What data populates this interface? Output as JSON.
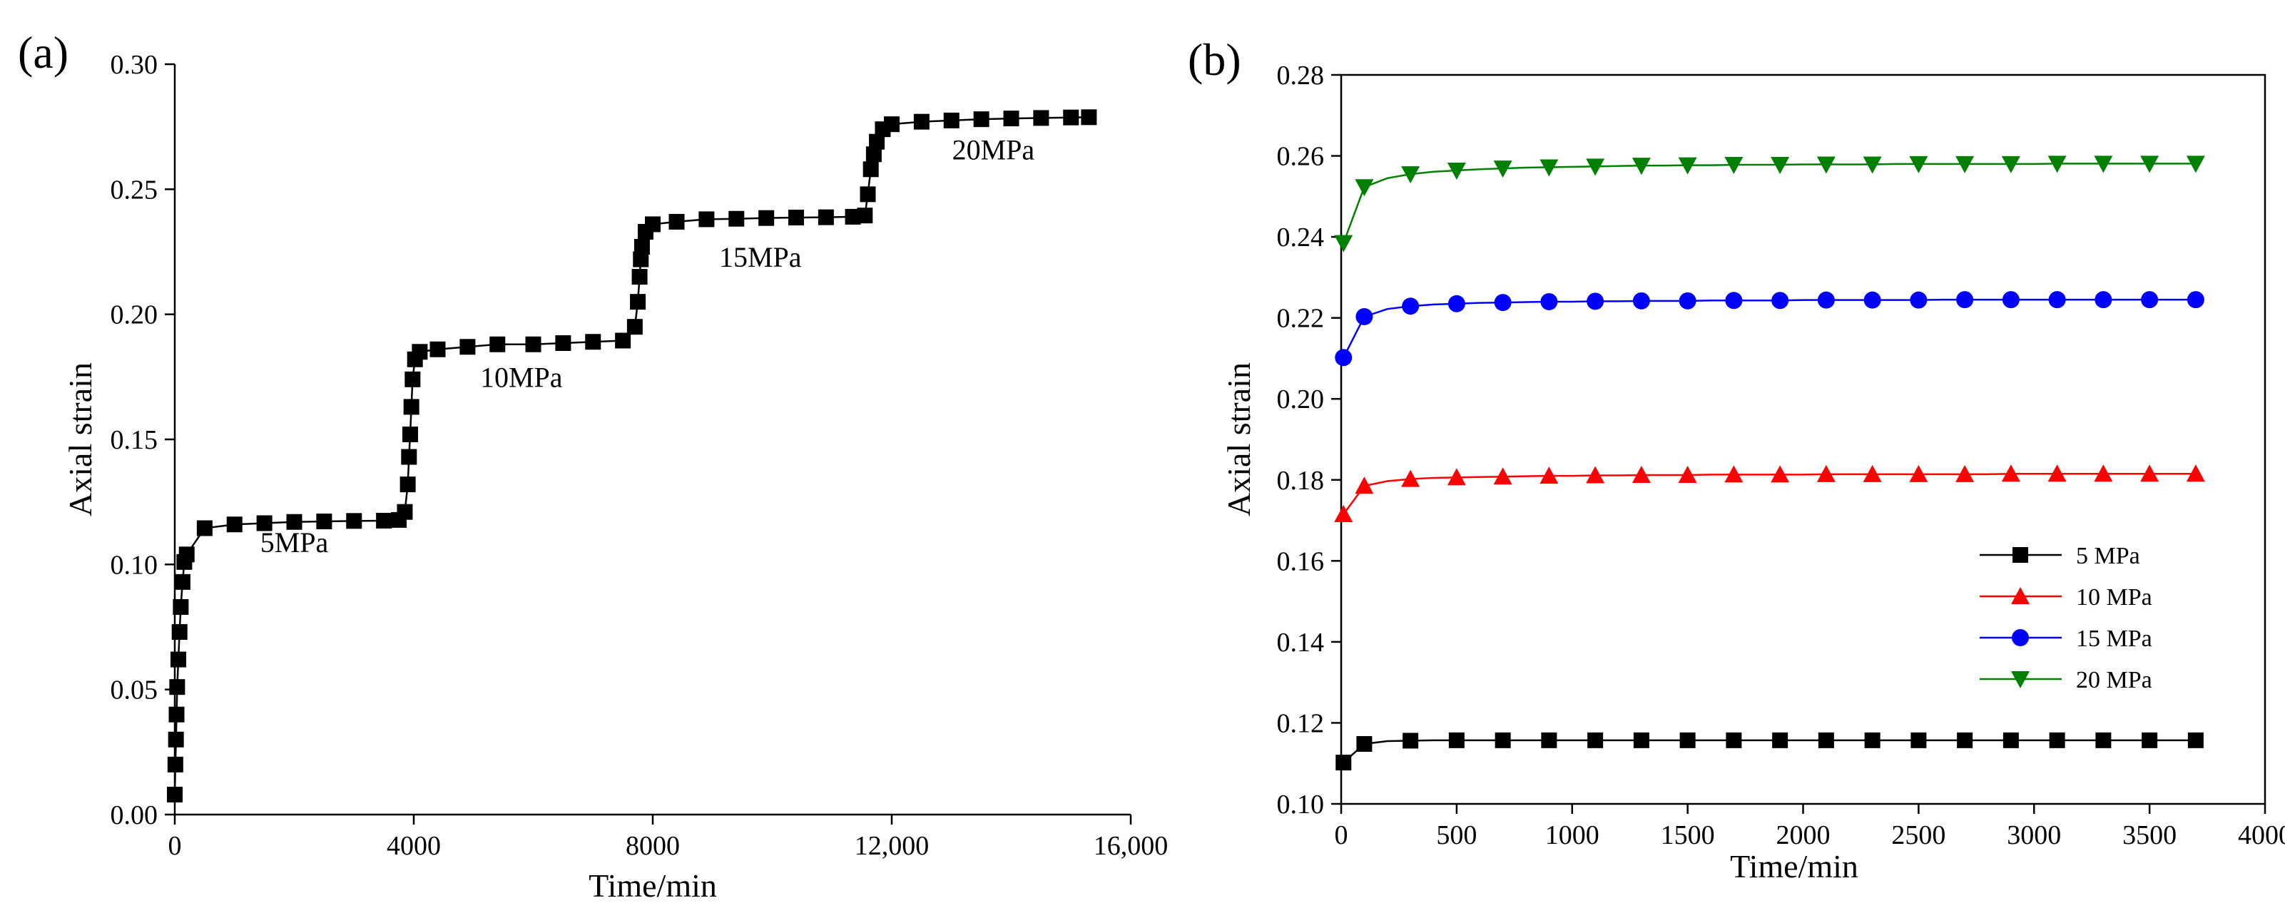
{
  "figure": {
    "panel_a_label": "(a)",
    "panel_b_label": "(b)"
  },
  "chart_data": [
    {
      "type": "line",
      "panel": "(a)",
      "title": "",
      "xlabel": "Time/min",
      "ylabel": "Axial strain",
      "xlim": [
        0,
        16000
      ],
      "ylim": [
        0,
        0.3
      ],
      "xticks": [
        0,
        4000,
        8000,
        12000,
        16000
      ],
      "xtick_labels": [
        "0",
        "4000",
        "8000",
        "12,000",
        "16,000"
      ],
      "yticks": [
        0,
        0.05,
        0.1,
        0.15,
        0.2,
        0.25,
        0.3
      ],
      "ytick_labels": [
        "0.00",
        "0.05",
        "0.10",
        "0.15",
        "0.20",
        "0.25",
        "0.30"
      ],
      "grid": false,
      "series": [
        {
          "name": "Axial strain",
          "color": "#000000",
          "marker": "square",
          "x": [
            0,
            10,
            20,
            30,
            40,
            60,
            80,
            100,
            130,
            160,
            200,
            500,
            1000,
            1500,
            2000,
            2500,
            3000,
            3500,
            3750,
            3850,
            3900,
            3920,
            3940,
            3960,
            3980,
            4020,
            4100,
            4400,
            4900,
            5400,
            6000,
            6500,
            7000,
            7500,
            7700,
            7750,
            7780,
            7800,
            7820,
            7880,
            8000,
            8400,
            8900,
            9400,
            9900,
            10400,
            10900,
            11350,
            11550,
            11600,
            11650,
            11700,
            11750,
            11850,
            12000,
            12500,
            13000,
            13500,
            14000,
            14500,
            15000,
            15300
          ],
          "y": [
            0.008,
            0.02,
            0.03,
            0.04,
            0.051,
            0.062,
            0.073,
            0.083,
            0.093,
            0.101,
            0.104,
            0.1145,
            0.116,
            0.1165,
            0.117,
            0.1172,
            0.1174,
            0.1175,
            0.1178,
            0.121,
            0.132,
            0.143,
            0.152,
            0.163,
            0.174,
            0.182,
            0.185,
            0.186,
            0.187,
            0.188,
            0.188,
            0.1885,
            0.189,
            0.1895,
            0.195,
            0.205,
            0.215,
            0.222,
            0.227,
            0.233,
            0.236,
            0.237,
            0.238,
            0.2382,
            0.2385,
            0.2387,
            0.2388,
            0.239,
            0.2395,
            0.248,
            0.258,
            0.264,
            0.269,
            0.274,
            0.276,
            0.277,
            0.2775,
            0.278,
            0.2783,
            0.2785,
            0.2787,
            0.2788
          ]
        }
      ],
      "annotations": [
        {
          "text": "5MPa",
          "x": 2000,
          "y": 0.105
        },
        {
          "text": "10MPa",
          "x": 5800,
          "y": 0.171
        },
        {
          "text": "15MPa",
          "x": 9800,
          "y": 0.219
        },
        {
          "text": "20MPa",
          "x": 13700,
          "y": 0.262
        }
      ]
    },
    {
      "type": "line",
      "panel": "(b)",
      "title": "",
      "xlabel": "Time/min",
      "ylabel": "Axial strain",
      "xlim": [
        0,
        4000
      ],
      "ylim": [
        0.1,
        0.28
      ],
      "xticks": [
        0,
        500,
        1000,
        1500,
        2000,
        2500,
        3000,
        3500,
        4000
      ],
      "xtick_labels": [
        "0",
        "500",
        "1000",
        "1500",
        "2000",
        "2500",
        "3000",
        "3500",
        "4000"
      ],
      "yticks": [
        0.1,
        0.12,
        0.14,
        0.16,
        0.18,
        0.2,
        0.22,
        0.24,
        0.26,
        0.28
      ],
      "ytick_labels": [
        "0.10",
        "0.12",
        "0.14",
        "0.16",
        "0.18",
        "0.20",
        "0.22",
        "0.24",
        "0.26",
        "0.28"
      ],
      "grid": false,
      "legend_position": "bottom-right (inside plot)",
      "x": [
        10,
        100,
        200,
        300,
        400,
        500,
        600,
        700,
        800,
        900,
        1000,
        1100,
        1200,
        1300,
        1400,
        1500,
        1600,
        1700,
        1800,
        1900,
        2000,
        2100,
        2200,
        2300,
        2400,
        2500,
        2600,
        2700,
        2800,
        2900,
        3000,
        3100,
        3200,
        3300,
        3400,
        3500,
        3600,
        3700
      ],
      "series": [
        {
          "name": "5 MPa",
          "color": "#000000",
          "marker": "square",
          "values": [
            0.1102,
            0.1148,
            0.1155,
            0.1156,
            0.1157,
            0.1157,
            0.1157,
            0.1157,
            0.1157,
            0.1157,
            0.1157,
            0.1157,
            0.1157,
            0.1157,
            0.1157,
            0.1157,
            0.1157,
            0.1157,
            0.1157,
            0.1157,
            0.1157,
            0.1157,
            0.1157,
            0.1157,
            0.1157,
            0.1157,
            0.1157,
            0.1157,
            0.1157,
            0.1157,
            0.1157,
            0.1157,
            0.1157,
            0.1157,
            0.1157,
            0.1157,
            0.1157,
            0.1157
          ]
        },
        {
          "name": "10 MPa",
          "color": "#ff0000",
          "marker": "triangle-up",
          "values": [
            0.1715,
            0.1785,
            0.1797,
            0.1802,
            0.1805,
            0.1806,
            0.1807,
            0.1808,
            0.1809,
            0.181,
            0.181,
            0.1811,
            0.1811,
            0.1812,
            0.1812,
            0.1812,
            0.1813,
            0.1813,
            0.1813,
            0.1813,
            0.1813,
            0.1814,
            0.1814,
            0.1814,
            0.1814,
            0.1814,
            0.1814,
            0.1814,
            0.1814,
            0.1815,
            0.1815,
            0.1815,
            0.1815,
            0.1815,
            0.1815,
            0.1815,
            0.1815,
            0.1815
          ]
        },
        {
          "name": "15 MPa",
          "color": "#0000ff",
          "marker": "circle",
          "values": [
            0.2102,
            0.2203,
            0.2222,
            0.2229,
            0.2233,
            0.2235,
            0.2237,
            0.2238,
            0.2239,
            0.224,
            0.224,
            0.2241,
            0.2241,
            0.2242,
            0.2242,
            0.2242,
            0.2243,
            0.2243,
            0.2243,
            0.2243,
            0.2244,
            0.2244,
            0.2244,
            0.2244,
            0.2244,
            0.2244,
            0.2245,
            0.2245,
            0.2245,
            0.2245,
            0.2245,
            0.2245,
            0.2245,
            0.2245,
            0.2245,
            0.2245,
            0.2245,
            0.2245
          ]
        },
        {
          "name": "20 MPa",
          "color": "#008000",
          "marker": "triangle-down",
          "values": [
            0.2385,
            0.2523,
            0.2545,
            0.2555,
            0.2561,
            0.2564,
            0.2567,
            0.2569,
            0.2571,
            0.2572,
            0.2573,
            0.2574,
            0.2575,
            0.2576,
            0.2576,
            0.2577,
            0.2577,
            0.2578,
            0.2578,
            0.2578,
            0.2579,
            0.2579,
            0.2579,
            0.2579,
            0.258,
            0.258,
            0.258,
            0.258,
            0.258,
            0.258,
            0.258,
            0.2581,
            0.2581,
            0.2581,
            0.2581,
            0.2581,
            0.2581,
            0.2581
          ]
        }
      ]
    }
  ]
}
